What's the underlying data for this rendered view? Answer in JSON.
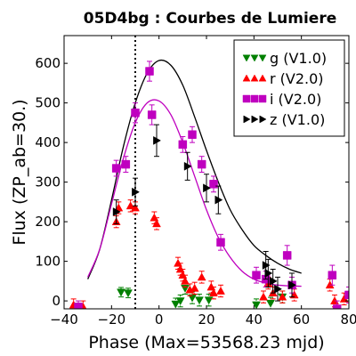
{
  "chart_data": {
    "type": "scatter",
    "title": "05D4bg : Courbes de Lumiere",
    "xlabel": "Phase (Max=53568.23 mjd)",
    "ylabel": "Flux (ZP_ab=30.)",
    "xlim": [
      -40,
      80
    ],
    "ylim": [
      -20,
      670
    ],
    "xticks": [
      -40,
      -20,
      0,
      20,
      40,
      60,
      80
    ],
    "yticks": [
      0,
      100,
      200,
      300,
      400,
      500,
      600
    ],
    "vline_x": -10,
    "legend_position": "top-right",
    "series": [
      {
        "name": "g (V1.0)",
        "color": "#008000",
        "marker": "triangle-down",
        "x": [
          -16,
          -13,
          7,
          9,
          11,
          14,
          17,
          21,
          41,
          47,
          52
        ],
        "y": [
          22,
          20,
          -8,
          0,
          32,
          8,
          2,
          2,
          -10,
          -6,
          10
        ],
        "err": [
          12,
          12,
          15,
          15,
          15,
          15,
          15,
          15,
          15,
          15,
          15
        ]
      },
      {
        "name": "r (V2.0)",
        "color": "#ff0000",
        "marker": "triangle-up",
        "x": [
          -36,
          -32,
          -18,
          -17,
          -12,
          -10,
          -2,
          -1,
          8,
          9,
          10,
          11,
          13,
          15,
          18,
          22,
          23,
          26,
          44,
          46,
          48,
          52,
          57,
          72,
          74,
          78
        ],
        "y": [
          -10,
          -15,
          200,
          235,
          240,
          235,
          210,
          195,
          95,
          80,
          65,
          50,
          28,
          32,
          60,
          35,
          20,
          25,
          10,
          45,
          20,
          10,
          15,
          40,
          0,
          5
        ],
        "err": [
          15,
          15,
          15,
          15,
          15,
          15,
          15,
          15,
          15,
          15,
          15,
          15,
          15,
          15,
          15,
          15,
          15,
          15,
          15,
          15,
          15,
          15,
          15,
          15,
          15,
          15
        ]
      },
      {
        "name": "i (V2.0)",
        "color": "#bf00bf",
        "marker": "square",
        "x": [
          -34,
          -18,
          -14,
          -10,
          -4,
          -3,
          10,
          14,
          18,
          23,
          26,
          41,
          45,
          54,
          56,
          73,
          75,
          80
        ],
        "y": [
          -15,
          335,
          345,
          475,
          580,
          470,
          395,
          420,
          345,
          295,
          148,
          65,
          55,
          115,
          40,
          65,
          -20,
          15
        ],
        "err": [
          15,
          20,
          20,
          25,
          25,
          25,
          20,
          20,
          20,
          20,
          20,
          20,
          20,
          25,
          20,
          25,
          20,
          20
        ]
      },
      {
        "name": "z (V1.0)",
        "color": "#000000",
        "marker": "triangle-right",
        "x": [
          -18,
          -10,
          -1,
          12,
          20,
          25,
          45,
          46,
          48,
          50,
          56
        ],
        "y": [
          225,
          275,
          405,
          340,
          285,
          255,
          90,
          70,
          50,
          30,
          40
        ],
        "err": [
          30,
          35,
          40,
          35,
          35,
          35,
          35,
          35,
          30,
          30,
          30
        ]
      }
    ],
    "fits": [
      {
        "name": "fit-z",
        "color": "#000000",
        "x": [
          -30,
          -25,
          -20,
          -15,
          -10,
          -5,
          0,
          5,
          10,
          15,
          20,
          25,
          30,
          35,
          40,
          45,
          50,
          55,
          60
        ],
        "y": [
          55,
          130,
          255,
          390,
          500,
          575,
          607,
          595,
          545,
          465,
          380,
          300,
          230,
          180,
          140,
          115,
          95,
          80,
          70
        ]
      },
      {
        "name": "fit-i",
        "color": "#bf00bf",
        "x": [
          -30,
          -25,
          -20,
          -15,
          -10,
          -5,
          0,
          5,
          10,
          15,
          20,
          25,
          30,
          35,
          40,
          45,
          50,
          55,
          60
        ],
        "y": [
          60,
          130,
          245,
          360,
          450,
          500,
          505,
          470,
          400,
          315,
          230,
          160,
          110,
          75,
          55,
          45,
          40,
          38,
          37
        ]
      }
    ]
  }
}
